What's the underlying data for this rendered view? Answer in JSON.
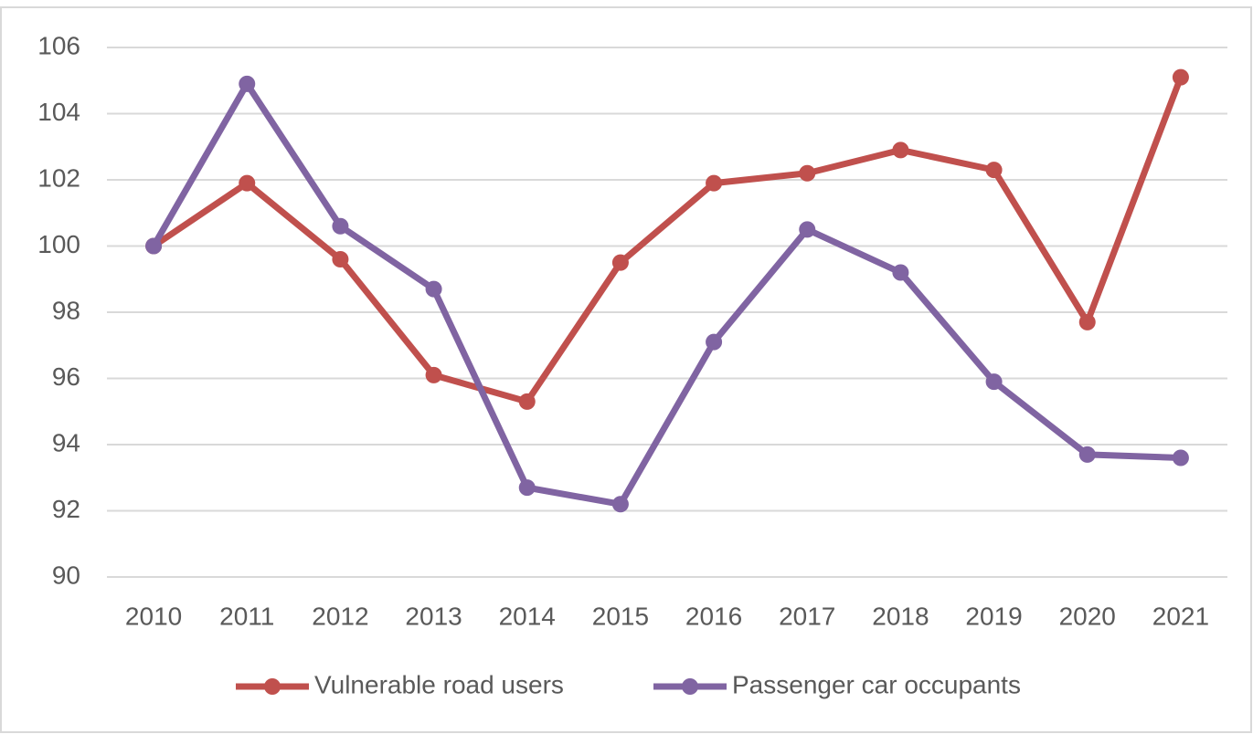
{
  "chart_data": {
    "type": "line",
    "categories": [
      "2010",
      "2011",
      "2012",
      "2013",
      "2014",
      "2015",
      "2016",
      "2017",
      "2018",
      "2019",
      "2020",
      "2021"
    ],
    "series": [
      {
        "name": "Vulnerable road users",
        "color": "#c0504d",
        "values": [
          100,
          101.9,
          99.6,
          96.1,
          95.3,
          99.5,
          101.9,
          102.2,
          102.9,
          102.3,
          97.7,
          105.1
        ]
      },
      {
        "name": "Passenger car occupants",
        "color": "#8064a2",
        "values": [
          100,
          104.9,
          100.6,
          98.7,
          92.7,
          92.2,
          97.1,
          100.5,
          99.2,
          95.9,
          93.7,
          93.6
        ]
      }
    ],
    "ylim": [
      90,
      106
    ],
    "yticks": [
      90,
      92,
      94,
      96,
      98,
      100,
      102,
      104,
      106
    ],
    "grid": true,
    "legend": "bottom"
  }
}
